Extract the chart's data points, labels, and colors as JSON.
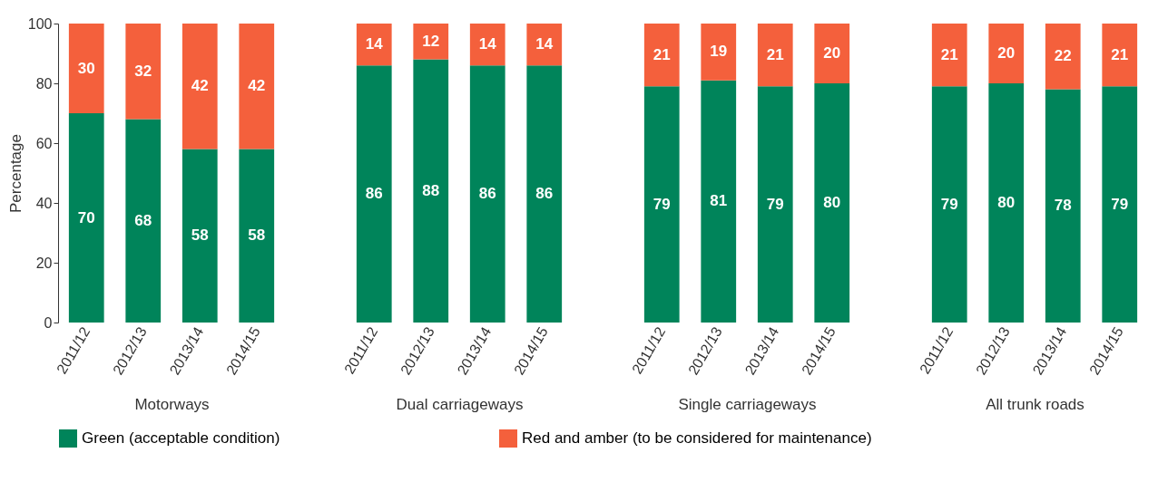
{
  "chart_data": [
    {
      "type": "bar",
      "xlabel": "Motorways",
      "ylabel": "Percentage",
      "categories": [
        "2011/12",
        "2012/13",
        "2013/14",
        "2014/15"
      ],
      "stacked": true,
      "data_labels": true,
      "ylim": [
        0,
        100
      ],
      "yticks": [
        0,
        20,
        40,
        60,
        80,
        100
      ],
      "grid": false,
      "legend": "bottom",
      "series": [
        {
          "name": "Green (acceptable condition)",
          "color": "#00845a",
          "values": [
            70,
            68,
            58,
            58
          ]
        },
        {
          "name": "Red and amber (to be considered for maintenance)",
          "color": "#f4603c",
          "values": [
            30,
            32,
            42,
            42
          ]
        }
      ]
    },
    {
      "type": "bar",
      "xlabel": "Dual carriageways",
      "categories": [
        "2011/12",
        "2012/13",
        "2013/14",
        "2014/15"
      ],
      "stacked": true,
      "data_labels": true,
      "ylim": [
        0,
        100
      ],
      "tick_labels": "x",
      "grid": false,
      "series": [
        {
          "name": "Green (acceptable condition)",
          "color": "#00845a",
          "values": [
            86,
            88,
            86,
            86
          ]
        },
        {
          "name": "Red and amber (to be considered for maintenance)",
          "color": "#f4603c",
          "values": [
            14,
            12,
            14,
            14
          ]
        }
      ]
    },
    {
      "type": "bar",
      "xlabel": "Single carriageways",
      "categories": [
        "2011/12",
        "2012/13",
        "2013/14",
        "2014/15"
      ],
      "stacked": true,
      "data_labels": true,
      "ylim": [
        0,
        100
      ],
      "tick_labels": "x",
      "grid": false,
      "series": [
        {
          "name": "Green (acceptable condition)",
          "color": "#00845a",
          "values": [
            79,
            81,
            79,
            80
          ]
        },
        {
          "name": "Red and amber (to be considered for maintenance)",
          "color": "#f4603c",
          "values": [
            21,
            19,
            21,
            20
          ]
        }
      ]
    },
    {
      "type": "bar",
      "xlabel": "All trunk roads",
      "categories": [
        "2011/12",
        "2012/13",
        "2013/14",
        "2014/15"
      ],
      "stacked": true,
      "data_labels": true,
      "ylim": [
        0,
        100
      ],
      "tick_labels": "x",
      "grid": false,
      "series": [
        {
          "name": "Green (acceptable condition)",
          "color": "#00845a",
          "values": [
            79,
            80,
            78,
            79
          ]
        },
        {
          "name": "Red and amber (to be considered for maintenance)",
          "color": "#f4603c",
          "values": [
            21,
            20,
            22,
            21
          ]
        }
      ]
    }
  ]
}
